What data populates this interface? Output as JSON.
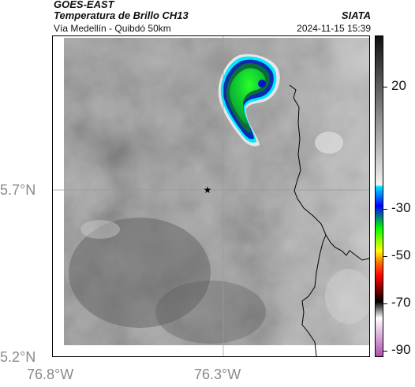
{
  "header": {
    "satellite": "GOES-EAST",
    "product": "Temperatura de Brillo CH13",
    "route": "Vía Medellín - Quibdó 50km",
    "organization": "SIATA",
    "datetime": "2024-11-15 15:39"
  },
  "map": {
    "lat_labels": [
      "5.7°N",
      "5.2°N"
    ],
    "lon_labels": [
      "76.8°W",
      "76.3°W"
    ],
    "marker_icon": "star-icon",
    "colors": {
      "background_gray": "#7c7c7c",
      "border_line": "#000000",
      "grid_line": "#9a9a9a"
    }
  },
  "colorbar": {
    "tick_labels": [
      "20",
      "-30",
      "-50",
      "-70",
      "-90"
    ],
    "colors": [
      "#111111",
      "#f0f0f0",
      "#00e5ff",
      "#0000ff",
      "#00ff00",
      "#ffff00",
      "#ff6600",
      "#ff0000",
      "#000000",
      "#ffffff",
      "#b04fb0"
    ]
  }
}
